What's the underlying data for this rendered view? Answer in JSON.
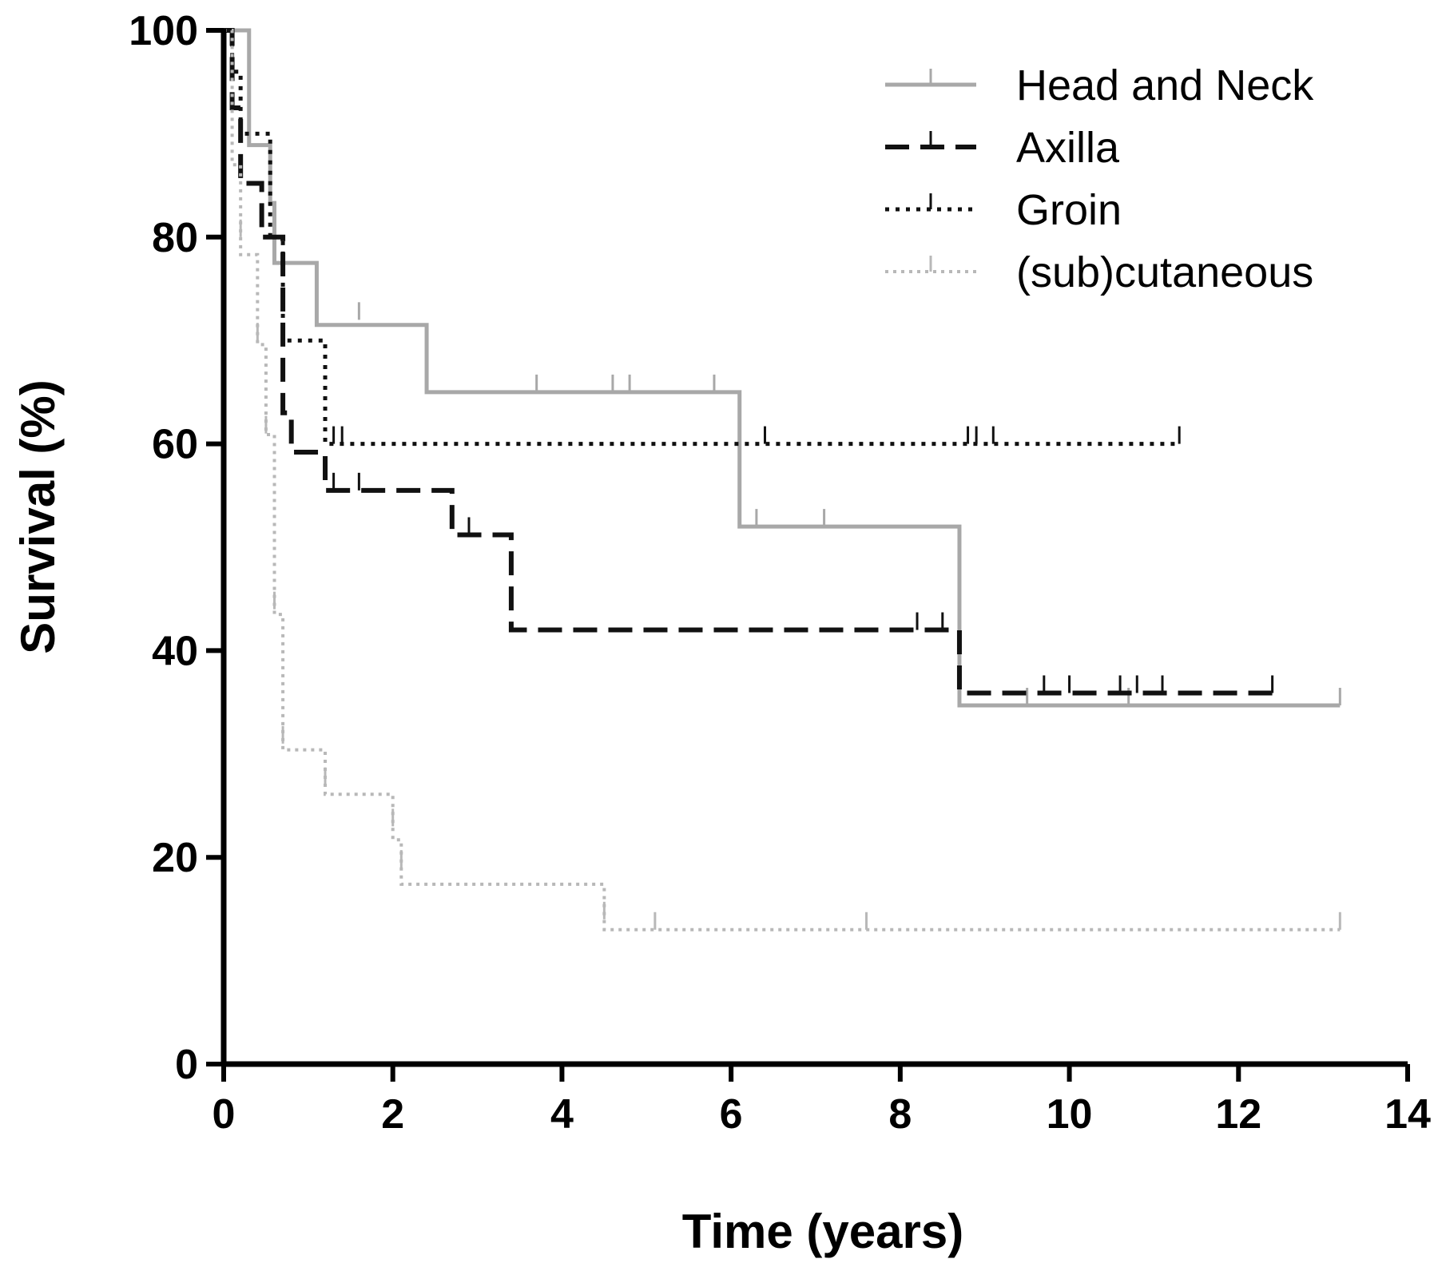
{
  "chart_data": {
    "type": "line",
    "subtype": "kaplan-meier survival curve",
    "xlabel": "Time (years)",
    "ylabel": "Survival (%)",
    "xlim": [
      0,
      14
    ],
    "ylim": [
      0,
      100
    ],
    "xticks": [
      "0",
      "2",
      "4",
      "6",
      "8",
      "10",
      "12",
      "14"
    ],
    "yticks": [
      "0",
      "20",
      "40",
      "60",
      "80",
      "100"
    ],
    "grid": false,
    "legend_position": "top-right",
    "series": [
      {
        "name": "Head and Neck",
        "color": "#a8a8a8",
        "dash": "solid",
        "steps": [
          [
            0,
            100
          ],
          [
            0.3,
            88.9
          ],
          [
            0.55,
            83.3
          ],
          [
            0.6,
            77.5
          ],
          [
            1.1,
            71.5
          ],
          [
            2.4,
            65.0
          ],
          [
            6.1,
            52.0
          ],
          [
            8.7,
            34.7
          ],
          [
            13.2,
            34.7
          ]
        ],
        "censored": [
          [
            1.1,
            72
          ],
          [
            1.6,
            72
          ],
          [
            3.7,
            65
          ],
          [
            4.6,
            65
          ],
          [
            4.8,
            65
          ],
          [
            5.8,
            65
          ],
          [
            6.3,
            52
          ],
          [
            7.1,
            52
          ],
          [
            9.5,
            34.7
          ],
          [
            10.7,
            34.7
          ],
          [
            13.2,
            34.7
          ]
        ]
      },
      {
        "name": "Axilla",
        "color": "#111111",
        "dash": "long-dash",
        "steps": [
          [
            0,
            100
          ],
          [
            0.1,
            92.5
          ],
          [
            0.2,
            85.2
          ],
          [
            0.45,
            80.0
          ],
          [
            0.7,
            63.0
          ],
          [
            0.8,
            59.2
          ],
          [
            1.2,
            55.5
          ],
          [
            2.7,
            51.2
          ],
          [
            3.4,
            42.0
          ],
          [
            8.7,
            35.9
          ],
          [
            12.4,
            35.9
          ]
        ],
        "censored": [
          [
            1.3,
            55.5
          ],
          [
            1.6,
            55.5
          ],
          [
            2.9,
            51.2
          ],
          [
            8.2,
            42
          ],
          [
            8.5,
            42
          ],
          [
            9.7,
            35.9
          ],
          [
            10.0,
            35.9
          ],
          [
            10.6,
            35.9
          ],
          [
            10.8,
            35.9
          ],
          [
            11.1,
            35.9
          ],
          [
            12.4,
            35.9
          ]
        ]
      },
      {
        "name": "Groin",
        "color": "#111111",
        "dash": "dotted",
        "steps": [
          [
            0,
            100
          ],
          [
            0.1,
            96
          ],
          [
            0.2,
            90.0
          ],
          [
            0.55,
            80.0
          ],
          [
            0.7,
            70.0
          ],
          [
            1.2,
            60.0
          ],
          [
            11.3,
            60.0
          ]
        ],
        "censored": [
          [
            1.3,
            60
          ],
          [
            1.4,
            60
          ],
          [
            6.4,
            60
          ],
          [
            8.8,
            60
          ],
          [
            8.9,
            60
          ],
          [
            9.1,
            60
          ],
          [
            11.3,
            60
          ]
        ]
      },
      {
        "name": "(sub)cutaneous",
        "color": "#b8b8b8",
        "dash": "fine-dot",
        "steps": [
          [
            0,
            100
          ],
          [
            0.1,
            87.0
          ],
          [
            0.2,
            78.3
          ],
          [
            0.4,
            69.6
          ],
          [
            0.5,
            60.9
          ],
          [
            0.6,
            43.5
          ],
          [
            0.7,
            30.4
          ],
          [
            1.2,
            26.1
          ],
          [
            2.0,
            21.7
          ],
          [
            2.1,
            17.4
          ],
          [
            4.5,
            13.0
          ],
          [
            13.2,
            13.0
          ]
        ],
        "censored": [
          [
            0.2,
            80
          ],
          [
            0.4,
            70
          ],
          [
            0.5,
            61
          ],
          [
            0.6,
            44
          ],
          [
            0.7,
            31
          ],
          [
            1.2,
            27
          ],
          [
            2.0,
            23
          ],
          [
            2.1,
            19
          ],
          [
            4.5,
            14
          ],
          [
            5.1,
            13
          ],
          [
            7.6,
            13
          ],
          [
            13.2,
            13
          ]
        ]
      }
    ]
  }
}
